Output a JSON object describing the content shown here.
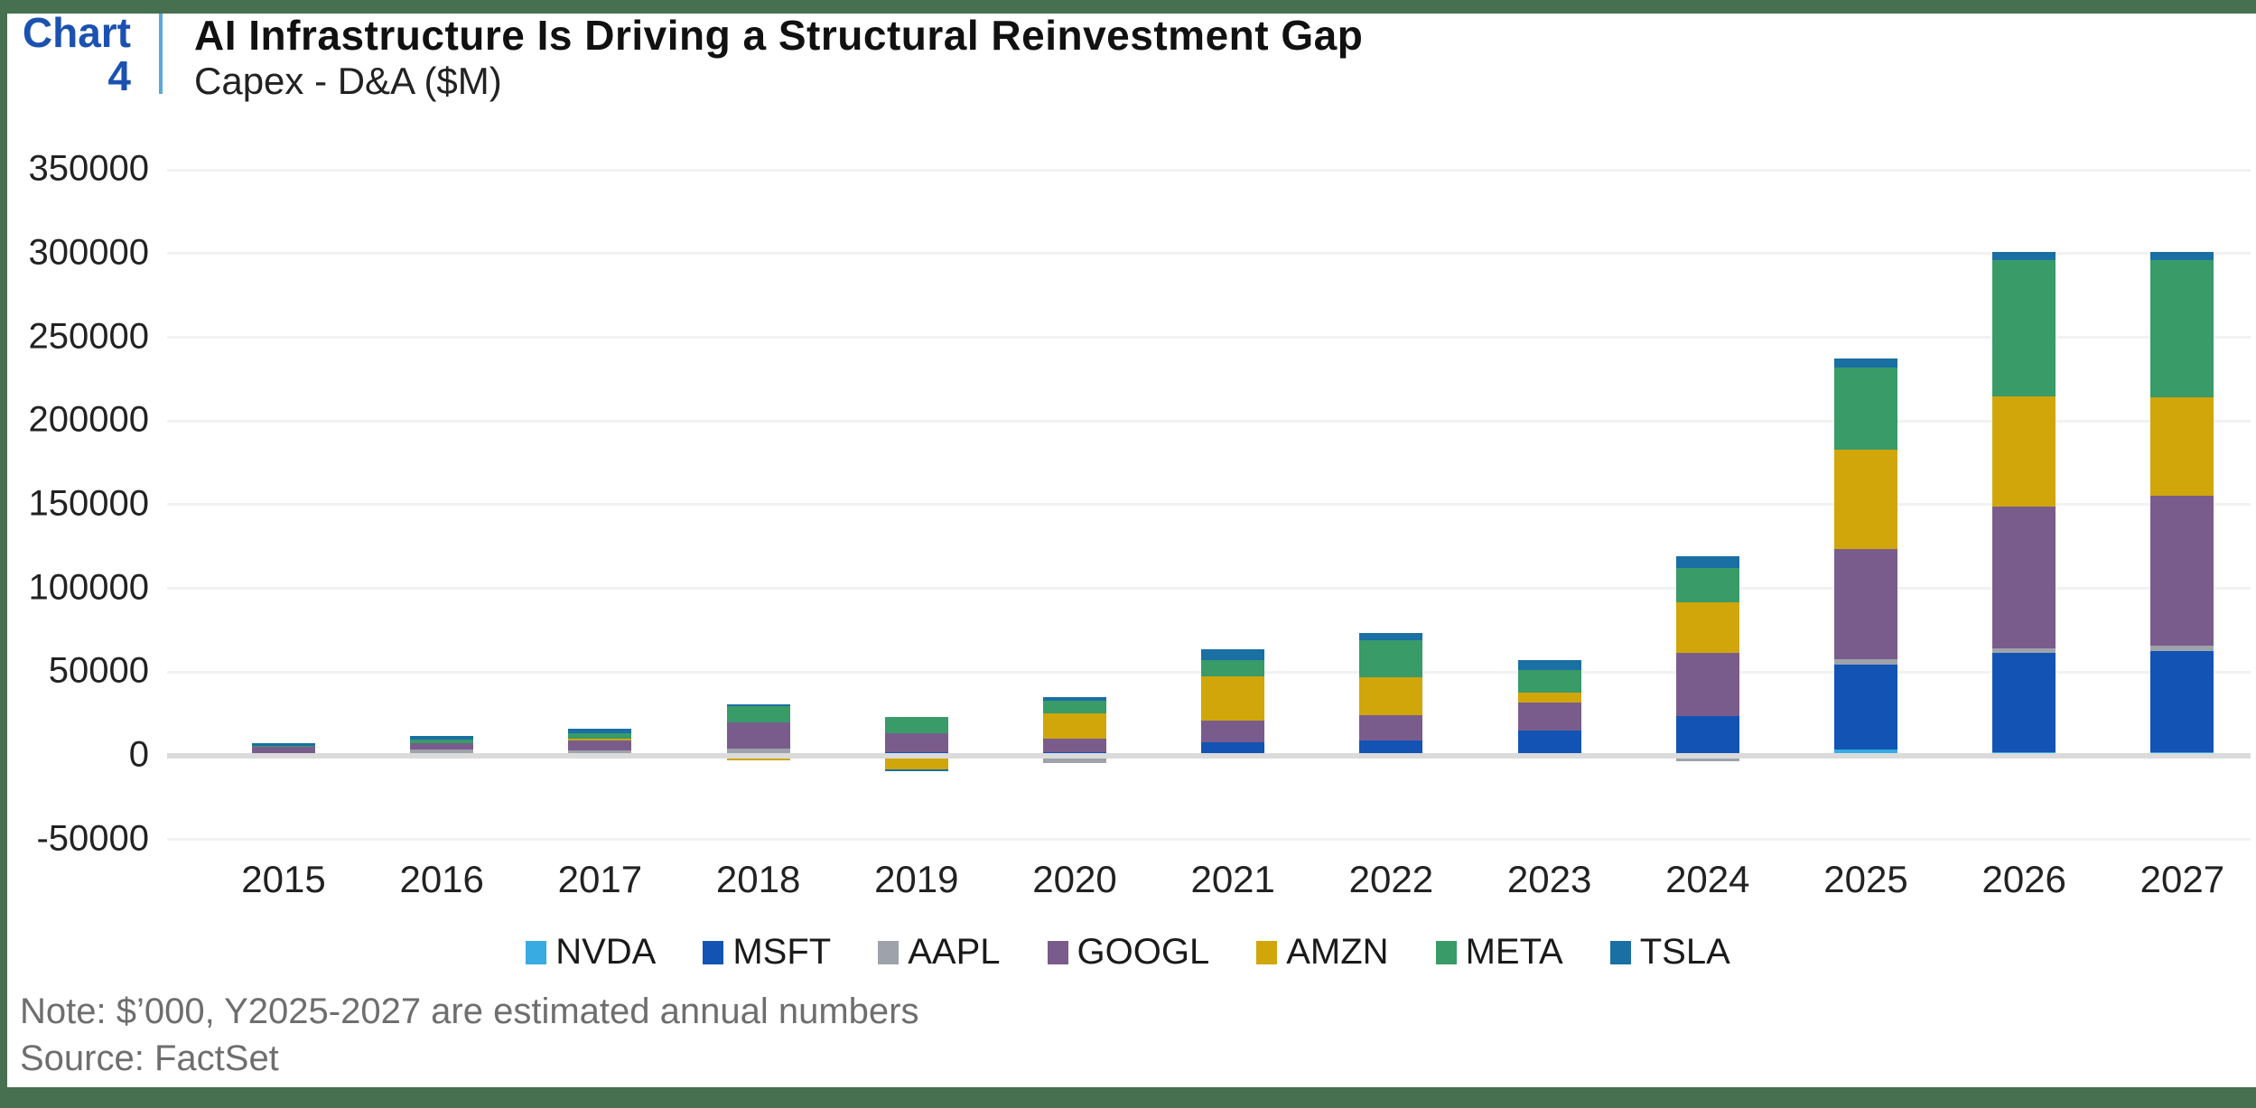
{
  "frame": {
    "border_color": "#477050"
  },
  "header": {
    "chart_label": "Chart",
    "chart_number": "4",
    "accent_color": "#1B52B1",
    "divider_color": "#5BA7DB",
    "title": "AI Infrastructure Is Driving a Structural Reinvestment Gap",
    "subtitle": "Capex - D&A ($M)"
  },
  "footer": {
    "note": "Note: $’000, Y2025-2027 are estimated annual numbers",
    "source": "Source: FactSet"
  },
  "chart_data": {
    "type": "bar",
    "stacked": true,
    "title": "AI Infrastructure Is Driving a Structural Reinvestment Gap",
    "ylabel": "Capex - D&A ($M)",
    "categories": [
      "2015",
      "2016",
      "2017",
      "2018",
      "2019",
      "2020",
      "2021",
      "2022",
      "2023",
      "2024",
      "2025",
      "2026",
      "2027"
    ],
    "series": [
      {
        "name": "NVDA",
        "color": "#38ACE2",
        "values": [
          0,
          0,
          100,
          200,
          100,
          200,
          300,
          400,
          300,
          900,
          3600,
          2000,
          2000
        ]
      },
      {
        "name": "MSFT",
        "color": "#1353B4",
        "values": [
          400,
          1800,
          500,
          1600,
          2100,
          1800,
          7700,
          8600,
          14800,
          22800,
          50800,
          59300,
          60700
        ]
      },
      {
        "name": "AAPL",
        "color": "#9EA3AB",
        "values": [
          300,
          1800,
          2800,
          2500,
          -1800,
          -4300,
          0,
          -1300,
          0,
          -3500,
          3100,
          2900,
          2900
        ]
      },
      {
        "name": "GOOGL",
        "color": "#7A5C8C",
        "values": [
          4500,
          3900,
          5600,
          15800,
          11300,
          8500,
          13100,
          15200,
          16500,
          38000,
          66100,
          84500,
          89500
        ]
      },
      {
        "name": "AMZN",
        "color": "#D0A60B",
        "values": [
          -1600,
          -1800,
          1200,
          -2500,
          -6400,
          14900,
          26400,
          22800,
          5900,
          30000,
          59200,
          66200,
          59200
        ]
      },
      {
        "name": "META",
        "color": "#389B68",
        "values": [
          800,
          2400,
          3100,
          9300,
          9900,
          7700,
          9900,
          22000,
          14000,
          20700,
          49300,
          81000,
          81700
        ]
      },
      {
        "name": "TSLA",
        "color": "#1A6FA3",
        "values": [
          1300,
          1800,
          2700,
          1400,
          -800,
          1800,
          6300,
          4100,
          5900,
          7000,
          5000,
          5100,
          5100
        ]
      }
    ],
    "y_ticks": [
      350000,
      300000,
      250000,
      200000,
      150000,
      100000,
      50000,
      0,
      -50000
    ],
    "ylim": [
      -50000,
      350000
    ],
    "grid": true,
    "legend_position": "bottom"
  }
}
